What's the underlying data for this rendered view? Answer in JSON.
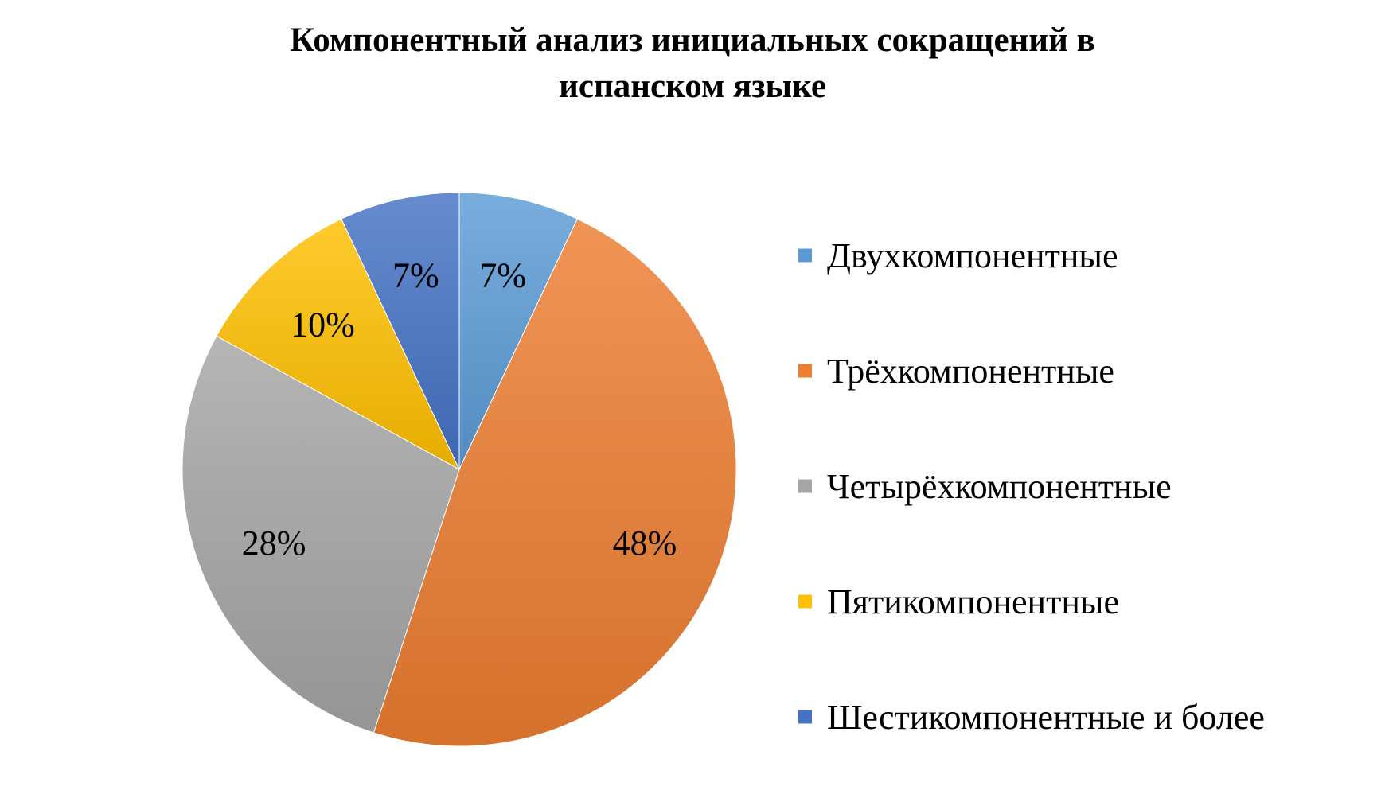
{
  "chart_data": {
    "type": "pie",
    "title_lines": [
      "Компонентный анализ инициальных сокращений в",
      "испанском языке"
    ],
    "categories": [
      "Двухкомпонентные",
      "Трёхкомпонентные",
      "Четырёхкомпонентные",
      "Пятикомпонентные",
      "Шестикомпонентные и более"
    ],
    "values": [
      7,
      48,
      28,
      10,
      7
    ],
    "data_labels": [
      "7%",
      "48%",
      "28%",
      "10%",
      "7%"
    ],
    "colors": [
      "#5B9BD5",
      "#ED7D31",
      "#A5A5A5",
      "#FFC000",
      "#4472C4"
    ],
    "start_angle_deg": 0,
    "direction": "clockwise",
    "legend_position": "right",
    "label_format": "percent"
  }
}
